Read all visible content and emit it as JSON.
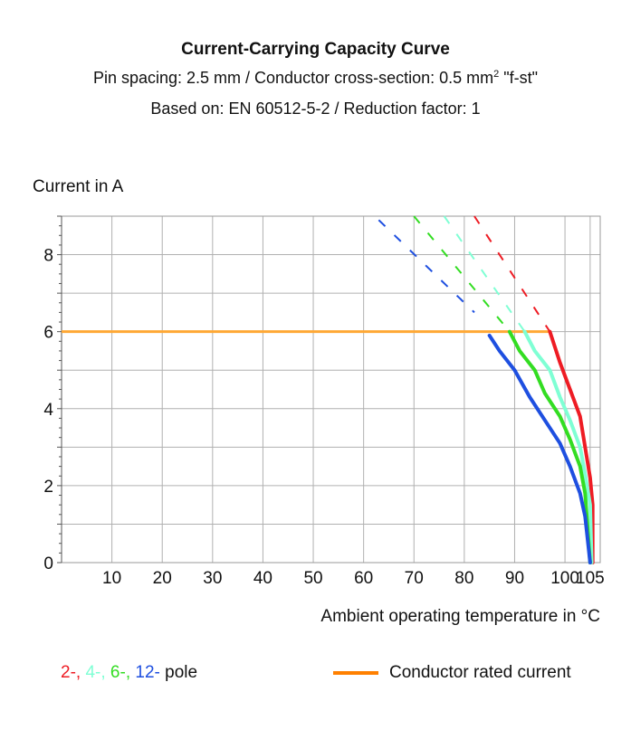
{
  "chart_data": {
    "type": "line",
    "title": "Current-Carrying Capacity Curve",
    "subtitle_line1_pre": "Pin spacing: 2.5 mm / Conductor cross-section: 0.5 mm",
    "subtitle_line1_sup": "2",
    "subtitle_line1_post": " \"f-st\"",
    "subtitle_line2": "Based on: EN 60512-5-2 / Reduction factor: 1",
    "ylabel": "Current in A",
    "xlabel": "Ambient operating temperature in °C",
    "xlim": [
      0,
      107
    ],
    "ylim": [
      0,
      9
    ],
    "x_ticks": [
      "10",
      "20",
      "30",
      "40",
      "50",
      "60",
      "70",
      "80",
      "90",
      "100",
      "105"
    ],
    "x_tick_values": [
      10,
      20,
      30,
      40,
      50,
      60,
      70,
      80,
      90,
      100,
      105
    ],
    "y_ticks": [
      "0",
      "2",
      "4",
      "6",
      "8"
    ],
    "y_tick_values": [
      0,
      2,
      4,
      6,
      8
    ],
    "grid": true,
    "series": [
      {
        "name": "2-",
        "color": "#ee1c24",
        "solid": [
          [
            97,
            6
          ],
          [
            99,
            5.2
          ],
          [
            101,
            4.5
          ],
          [
            103,
            3.8
          ],
          [
            104,
            3
          ],
          [
            105,
            2.2
          ],
          [
            105.5,
            1.5
          ],
          [
            105.5,
            0
          ]
        ],
        "dashed": [
          [
            82,
            9
          ],
          [
            97,
            6
          ]
        ]
      },
      {
        "name": "4-",
        "color": "#7fffd4",
        "solid": [
          [
            92,
            6
          ],
          [
            94,
            5.5
          ],
          [
            97,
            5
          ],
          [
            99,
            4.3
          ],
          [
            101,
            3.7
          ],
          [
            103,
            3
          ],
          [
            104,
            2.3
          ],
          [
            105,
            1.5
          ],
          [
            105.3,
            0
          ]
        ],
        "dashed": [
          [
            76,
            9
          ],
          [
            92,
            6
          ]
        ]
      },
      {
        "name": "6-",
        "color": "#33dd22",
        "solid": [
          [
            89,
            6
          ],
          [
            91,
            5.5
          ],
          [
            94,
            5
          ],
          [
            96,
            4.4
          ],
          [
            99,
            3.8
          ],
          [
            101,
            3.2
          ],
          [
            103,
            2.5
          ],
          [
            104,
            1.8
          ],
          [
            105,
            0
          ]
        ],
        "dashed": [
          [
            70,
            9
          ],
          [
            89,
            6
          ]
        ]
      },
      {
        "name": "12-",
        "color": "#1e4fe0",
        "solid": [
          [
            85,
            5.9
          ],
          [
            87,
            5.5
          ],
          [
            90,
            5
          ],
          [
            93,
            4.3
          ],
          [
            96,
            3.7
          ],
          [
            99,
            3.1
          ],
          [
            101,
            2.5
          ],
          [
            103,
            1.8
          ],
          [
            104,
            1.2
          ],
          [
            105,
            0
          ]
        ],
        "dashed": [
          [
            63,
            8.9
          ],
          [
            82,
            6.5
          ]
        ]
      }
    ],
    "rated_current": {
      "name": "Conductor rated current",
      "value": 6,
      "x_end": 97,
      "color": "#ffa834"
    }
  },
  "legend": {
    "pole_parts": [
      {
        "text": "2-,",
        "color": "#ee1c24"
      },
      {
        "text": " 4-,",
        "color": "#7fffd4"
      },
      {
        "text": " 6-,",
        "color": "#33dd22"
      },
      {
        "text": " 12-",
        "color": "#1e4fe0"
      },
      {
        "text": " pole",
        "color": "#111111"
      }
    ],
    "rated_label": "Conductor rated current",
    "rated_color": "#ff8000"
  }
}
